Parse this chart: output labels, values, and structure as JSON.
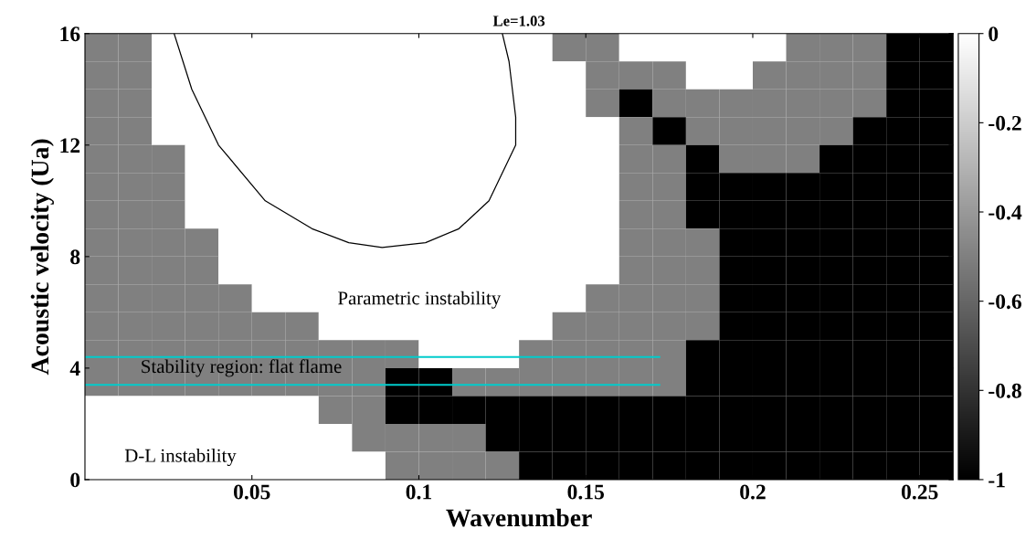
{
  "chart_data": {
    "type": "heatmap",
    "title": "Le=1.03",
    "xlabel": "Wavenumber",
    "ylabel": "Acoustic velocity (Ua)",
    "xlim": [
      0,
      0.26
    ],
    "ylim": [
      0,
      16
    ],
    "xticks": [
      0.05,
      0.1,
      0.15,
      0.2,
      0.25
    ],
    "yticks": [
      0,
      4,
      8,
      12,
      16
    ],
    "clim": [
      -1,
      0
    ],
    "cticks": [
      0,
      -0.2,
      -0.4,
      -0.6,
      -0.8,
      -1
    ],
    "cells": [
      [
        -0.5,
        -0.5,
        0,
        0,
        0,
        0,
        0,
        0,
        0,
        0,
        0,
        0,
        0,
        0,
        -0.5,
        -0.5,
        0,
        0,
        0,
        0,
        0,
        -0.5,
        -0.5,
        -0.5,
        -1,
        -1
      ],
      [
        -0.5,
        -0.5,
        0,
        0,
        0,
        0,
        0,
        0,
        0,
        0,
        0,
        0,
        0,
        0,
        0,
        -0.5,
        -0.5,
        -0.5,
        0,
        0,
        -0.5,
        -0.5,
        -0.5,
        -0.5,
        -1,
        -1
      ],
      [
        -0.5,
        -0.5,
        0,
        0,
        0,
        0,
        0,
        0,
        0,
        0,
        0,
        0,
        0,
        0,
        0,
        -0.5,
        -1,
        -0.5,
        -0.5,
        -0.5,
        -0.5,
        -0.5,
        -0.5,
        -0.5,
        -1,
        -1
      ],
      [
        -0.5,
        -0.5,
        0,
        0,
        0,
        0,
        0,
        0,
        0,
        0,
        0,
        0,
        0,
        0,
        0,
        0,
        -0.5,
        -1,
        -0.5,
        -0.5,
        -0.5,
        -0.5,
        -0.5,
        -1,
        -1,
        -1
      ],
      [
        -0.5,
        -0.5,
        -0.5,
        0,
        0,
        0,
        0,
        0,
        0,
        0,
        0,
        0,
        0,
        0,
        0,
        0,
        -0.5,
        -0.5,
        -1,
        -0.5,
        -0.5,
        -0.5,
        -1,
        -1,
        -1,
        -1
      ],
      [
        -0.5,
        -0.5,
        -0.5,
        0,
        0,
        0,
        0,
        0,
        0,
        0,
        0,
        0,
        0,
        0,
        0,
        0,
        -0.5,
        -0.5,
        -1,
        -1,
        -1,
        -1,
        -1,
        -1,
        -1,
        -1
      ],
      [
        -0.5,
        -0.5,
        -0.5,
        0,
        0,
        0,
        0,
        0,
        0,
        0,
        0,
        0,
        0,
        0,
        0,
        0,
        -0.5,
        -0.5,
        -1,
        -1,
        -1,
        -1,
        -1,
        -1,
        -1,
        -1
      ],
      [
        -0.5,
        -0.5,
        -0.5,
        -0.5,
        0,
        0,
        0,
        0,
        0,
        0,
        0,
        0,
        0,
        0,
        0,
        0,
        -0.5,
        -0.5,
        -0.5,
        -1,
        -1,
        -1,
        -1,
        -1,
        -1,
        -1
      ],
      [
        -0.5,
        -0.5,
        -0.5,
        -0.5,
        0,
        0,
        0,
        0,
        0,
        0,
        0,
        0,
        0,
        0,
        0,
        0,
        -0.5,
        -0.5,
        -0.5,
        -1,
        -1,
        -1,
        -1,
        -1,
        -1,
        -1
      ],
      [
        -0.5,
        -0.5,
        -0.5,
        -0.5,
        -0.5,
        0,
        0,
        0,
        0,
        0,
        0,
        0,
        0,
        0,
        0,
        -0.5,
        -0.5,
        -0.5,
        -0.5,
        -1,
        -1,
        -1,
        -1,
        -1,
        -1,
        -1
      ],
      [
        -0.5,
        -0.5,
        -0.5,
        -0.5,
        -0.5,
        -0.5,
        -0.5,
        0,
        0,
        0,
        0,
        0,
        0,
        0,
        -0.5,
        -0.5,
        -0.5,
        -0.5,
        -0.5,
        -1,
        -1,
        -1,
        -1,
        -1,
        -1,
        -1
      ],
      [
        -0.5,
        -0.5,
        -0.5,
        -0.5,
        -0.5,
        -0.5,
        -0.5,
        -0.5,
        -0.5,
        -0.5,
        0,
        0,
        0,
        -0.5,
        -0.5,
        -0.5,
        -0.5,
        -0.5,
        -1,
        -1,
        -1,
        -1,
        -1,
        -1,
        -1,
        -1
      ],
      [
        -0.5,
        -0.5,
        -0.5,
        -0.5,
        -0.5,
        -0.5,
        -0.5,
        -0.5,
        -0.5,
        -1,
        -1,
        -0.5,
        -0.5,
        -0.5,
        -0.5,
        -0.5,
        -0.5,
        -0.5,
        -1,
        -1,
        -1,
        -1,
        -1,
        -1,
        -1,
        -1
      ],
      [
        0,
        0,
        0,
        0,
        0,
        0,
        0,
        -0.5,
        -0.5,
        -1,
        -1,
        -1,
        -1,
        -1,
        -1,
        -1,
        -1,
        -1,
        -1,
        -1,
        -1,
        -1,
        -1,
        -1,
        -1,
        -1
      ],
      [
        0,
        0,
        0,
        0,
        0,
        0,
        0,
        0,
        -0.5,
        -0.5,
        -0.5,
        -0.5,
        -1,
        -1,
        -1,
        -1,
        -1,
        -1,
        -1,
        -1,
        -1,
        -1,
        -1,
        -1,
        -1,
        -1
      ],
      [
        0,
        0,
        0,
        0,
        0,
        0,
        0,
        0,
        0,
        -0.5,
        -0.5,
        -0.5,
        -0.5,
        -1,
        -1,
        -1,
        -1,
        -1,
        -1,
        -1,
        -1,
        -1,
        -1,
        -1,
        -1,
        -1
      ]
    ],
    "series": [
      {
        "type": "line",
        "color": "#000000",
        "x": [
          0.0267,
          0.032,
          0.04,
          0.054,
          0.068,
          0.079,
          0.089,
          0.102,
          0.112,
          0.121,
          0.129,
          0.129,
          0.128,
          0.127,
          0.125
        ],
        "values": [
          16,
          14,
          12,
          10,
          9,
          8.5,
          8.33,
          8.5,
          9,
          10,
          12,
          13,
          14,
          15,
          16
        ]
      },
      {
        "type": "line",
        "color": "#00cccc",
        "x": [
          0,
          0.172
        ],
        "values": [
          4.4,
          4.4
        ]
      },
      {
        "type": "line",
        "color": "#00cccc",
        "x": [
          0,
          0.172
        ],
        "values": [
          3.4,
          3.4
        ]
      }
    ],
    "annotations": [
      "Parametric instability",
      "Stability region: flat flame",
      "D-L instability"
    ]
  }
}
